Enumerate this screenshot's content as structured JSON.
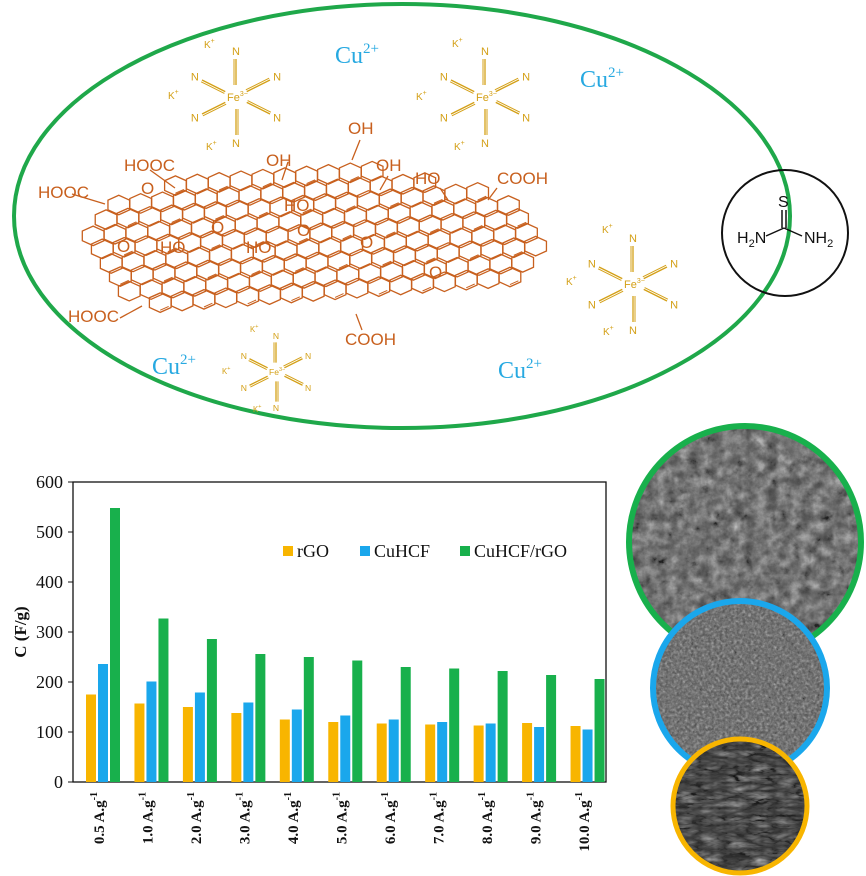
{
  "colors": {
    "ellipse": "#1fa84a",
    "graphene": "#c8601e",
    "ferricyanide": "#d4a017",
    "copper": "#27a9e1",
    "rgo": "#f8b500",
    "cuhcf": "#1aa7ec",
    "composite": "#18b04c"
  },
  "schematic": {
    "cu_label": "Cu",
    "cu_charge": "2+",
    "k_label": "K",
    "k_charge": "+",
    "fe_label": "Fe",
    "fe_charge": "3−",
    "n_label": "N",
    "oh_label": "OH",
    "ho_label": "HO",
    "o_label": "O",
    "cooh_label": "COOH",
    "hooc_label": "HOOC",
    "thiourea": {
      "s": "S",
      "h2n": "H",
      "n_right": "NH",
      "sub2": "2"
    }
  },
  "chart_data": {
    "type": "bar",
    "title": "",
    "xlabel": "",
    "ylabel": "C (F/g)",
    "ylim": [
      0,
      600
    ],
    "yticks": [
      0,
      100,
      200,
      300,
      400,
      500,
      600
    ],
    "grid": false,
    "legend_position": "top-right",
    "categories": [
      "0.5 A.g",
      "1.0 A.g",
      "2.0 A.g",
      "3.0 A.g",
      "4.0 A.g",
      "5.0 A.g",
      "6.0 A.g",
      "7.0 A.g",
      "8.0 A.g",
      "9.0 A.g",
      "10.0 A.g"
    ],
    "category_superscript": "-1",
    "series": [
      {
        "name": "rGO",
        "values": [
          175,
          157,
          150,
          138,
          125,
          120,
          117,
          115,
          113,
          118,
          112
        ]
      },
      {
        "name": "CuHCF",
        "values": [
          236,
          201,
          179,
          159,
          145,
          133,
          125,
          120,
          117,
          110,
          105
        ]
      },
      {
        "name": "CuHCF/rGO",
        "values": [
          548,
          327,
          286,
          256,
          250,
          243,
          230,
          227,
          222,
          214,
          206
        ]
      }
    ]
  },
  "sem_images": [
    {
      "ring": "#18b04c",
      "texture": "rough-flakes"
    },
    {
      "ring": "#1aa7ec",
      "texture": "granular"
    },
    {
      "ring": "#f8b500",
      "texture": "wrinkled-sheets"
    }
  ]
}
